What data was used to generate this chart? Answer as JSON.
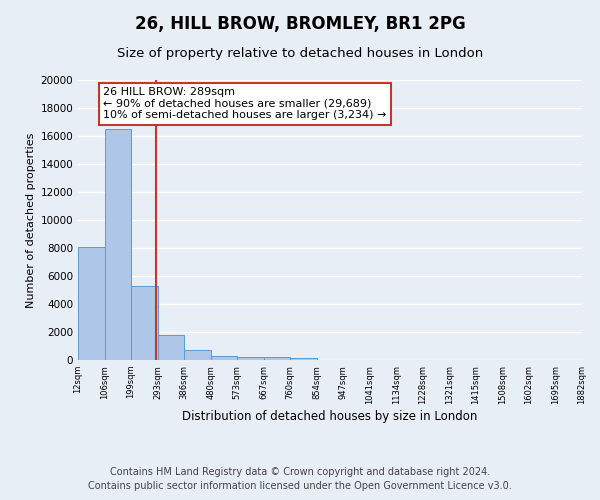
{
  "title": "26, HILL BROW, BROMLEY, BR1 2PG",
  "subtitle": "Size of property relative to detached houses in London",
  "xlabel": "Distribution of detached houses by size in London",
  "ylabel": "Number of detached properties",
  "bar_values": [
    8100,
    16500,
    5300,
    1800,
    750,
    300,
    250,
    200,
    150,
    0,
    0,
    0,
    0,
    0,
    0,
    0,
    0,
    0,
    0
  ],
  "bin_labels": [
    "12sqm",
    "106sqm",
    "199sqm",
    "293sqm",
    "386sqm",
    "480sqm",
    "573sqm",
    "667sqm",
    "760sqm",
    "854sqm",
    "947sqm",
    "1041sqm",
    "1134sqm",
    "1228sqm",
    "1321sqm",
    "1415sqm",
    "1508sqm",
    "1602sqm",
    "1695sqm",
    "1882sqm"
  ],
  "bar_color": "#aec6e8",
  "bar_edge_color": "#5b9bd5",
  "bg_color": "#e8eef5",
  "grid_color": "#ffffff",
  "vline_color": "#c0392b",
  "annotation_text": "26 HILL BROW: 289sqm\n← 90% of detached houses are smaller (29,689)\n10% of semi-detached houses are larger (3,234) →",
  "annotation_box_color": "#ffffff",
  "annotation_box_edge": "#c0392b",
  "ylim": [
    0,
    20000
  ],
  "yticks": [
    0,
    2000,
    4000,
    6000,
    8000,
    10000,
    12000,
    14000,
    16000,
    18000,
    20000
  ],
  "footer_line1": "Contains HM Land Registry data © Crown copyright and database right 2024.",
  "footer_line2": "Contains public sector information licensed under the Open Government Licence v3.0.",
  "title_fontsize": 12,
  "subtitle_fontsize": 9.5,
  "annot_fontsize": 8,
  "footer_fontsize": 7,
  "ylabel_fontsize": 8,
  "xlabel_fontsize": 8.5
}
